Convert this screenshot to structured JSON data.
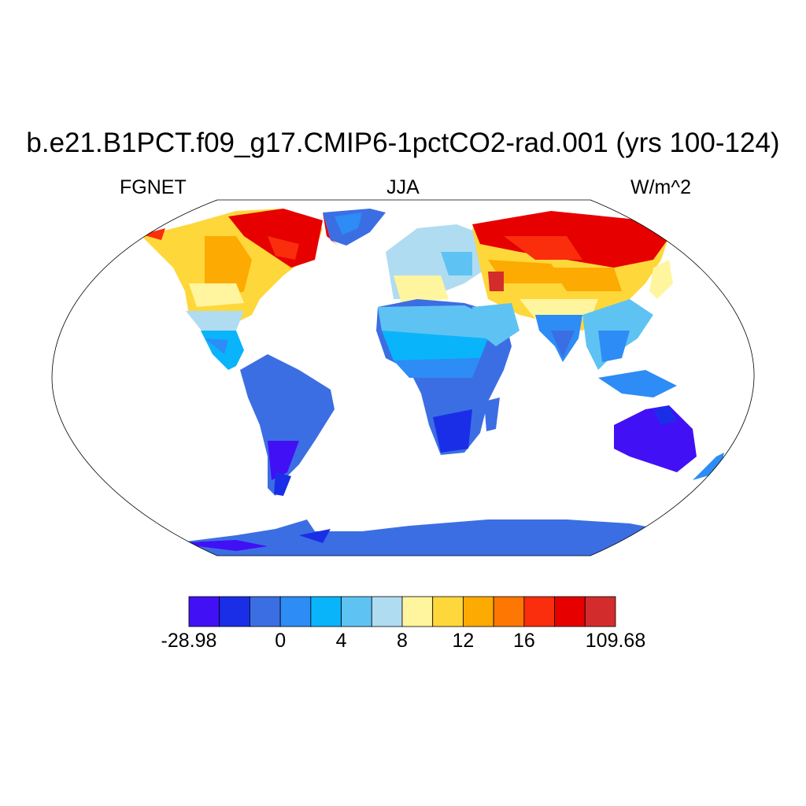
{
  "title": "b.e21.B1PCT.f09_g17.CMIP6-1pctCO2-rad.001 (yrs 100-124)",
  "left_string": "FGNET",
  "center_string": "JJA",
  "right_string": "W/m^2",
  "colorbar": {
    "colors": [
      "#4210f5",
      "#1a2ee8",
      "#3c6ee3",
      "#2d8cf5",
      "#0ab4fa",
      "#5ec3f2",
      "#b0dcf2",
      "#fff59e",
      "#fed73a",
      "#fdaa02",
      "#fd7702",
      "#fa2d0c",
      "#e60000",
      "#d32c2c"
    ],
    "tick_labels": [
      {
        "text": "-28.98",
        "boundary": 0
      },
      {
        "text": "0",
        "boundary": 3
      },
      {
        "text": "4",
        "boundary": 5
      },
      {
        "text": "8",
        "boundary": 7
      },
      {
        "text": "12",
        "boundary": 9
      },
      {
        "text": "16",
        "boundary": 11
      },
      {
        "text": "109.68",
        "boundary": 14
      }
    ]
  },
  "chart_data": {
    "type": "heatmap",
    "projection": "Robinson",
    "variable": "FGNET",
    "season": "JJA",
    "units": "W/m^2",
    "range": [
      -28.98,
      109.68
    ],
    "levels": [
      0,
      4,
      8,
      12,
      16
    ],
    "regions": [
      {
        "name": "Northern Canada / Greenland coast",
        "value_level": "high (>16)"
      },
      {
        "name": "Greenland interior",
        "value_level": "low (0 to -28.98)"
      },
      {
        "name": "Central North America",
        "value_level": "10-16"
      },
      {
        "name": "Central America",
        "value_level": "2-6"
      },
      {
        "name": "South America",
        "value_level": "-28.98 to 0"
      },
      {
        "name": "Europe",
        "value_level": "6-12"
      },
      {
        "name": "North Africa / Sahara",
        "value_level": "2-8"
      },
      {
        "name": "Southern Africa",
        "value_level": "-28.98 to 0"
      },
      {
        "name": "Siberia",
        "value_level": "high (>16)"
      },
      {
        "name": "Central Asia",
        "value_level": "10-16"
      },
      {
        "name": "South / Southeast Asia",
        "value_level": "0-6"
      },
      {
        "name": "Australia",
        "value_level": "-28.98 to 0"
      },
      {
        "name": "Antarctica",
        "value_level": "-28.98 to 0"
      }
    ]
  }
}
